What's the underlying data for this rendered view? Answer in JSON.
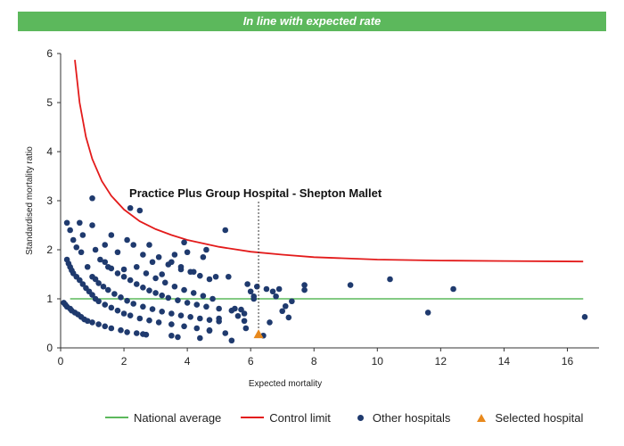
{
  "banner": {
    "text": "In line with expected rate"
  },
  "colors": {
    "banner": "#5cb85c",
    "national_average": "#5cb85c",
    "control_limit": "#e31b1b",
    "other_hospitals": "#1f3a6e",
    "selected_hospital": "#e8891d"
  },
  "legend": {
    "national_average": "National average",
    "control_limit": "Control limit",
    "other_hospitals": "Other hospitals",
    "selected_hospital": "Selected hospital"
  },
  "chart_data": {
    "type": "scatter",
    "xlabel": "Expected mortality",
    "ylabel": "Standardised mortality ratio",
    "xlim": [
      0,
      17
    ],
    "ylim": [
      0,
      6
    ],
    "xticks": [
      0,
      2,
      4,
      6,
      8,
      10,
      12,
      14,
      16
    ],
    "yticks": [
      0,
      1,
      2,
      3,
      4,
      5,
      6
    ],
    "grid": false,
    "legend_position": "bottom",
    "national_average": 1,
    "control_limit": {
      "name": "Control limit",
      "x": [
        0.45,
        0.6,
        0.8,
        1.0,
        1.3,
        1.6,
        2.0,
        2.5,
        3.0,
        3.5,
        4.0,
        5.0,
        6.0,
        7.0,
        8.0,
        10.0,
        12.0,
        14.0,
        16.5
      ],
      "y": [
        5.87,
        5.0,
        4.3,
        3.85,
        3.4,
        3.1,
        2.82,
        2.58,
        2.42,
        2.3,
        2.2,
        2.06,
        1.96,
        1.9,
        1.85,
        1.8,
        1.78,
        1.77,
        1.76
      ]
    },
    "selected_hospital": {
      "name": "Practice Plus Group Hospital - Shepton Mallet",
      "x": 6.25,
      "y": 0.27
    },
    "other_hospitals": [
      [
        0.2,
        2.55
      ],
      [
        0.3,
        2.4
      ],
      [
        0.4,
        2.2
      ],
      [
        0.5,
        2.05
      ],
      [
        0.6,
        2.55
      ],
      [
        0.65,
        1.95
      ],
      [
        0.7,
        2.3
      ],
      [
        0.85,
        1.65
      ],
      [
        1.0,
        3.05
      ],
      [
        1.0,
        2.5
      ],
      [
        1.1,
        2.0
      ],
      [
        1.25,
        1.8
      ],
      [
        1.4,
        2.1
      ],
      [
        1.5,
        1.65
      ],
      [
        1.6,
        2.3
      ],
      [
        1.8,
        1.95
      ],
      [
        2.0,
        1.6
      ],
      [
        2.1,
        2.2
      ],
      [
        2.2,
        2.85
      ],
      [
        2.3,
        2.1
      ],
      [
        2.5,
        2.8
      ],
      [
        2.6,
        1.9
      ],
      [
        2.8,
        2.1
      ],
      [
        2.9,
        1.75
      ],
      [
        3.1,
        1.85
      ],
      [
        3.2,
        1.5
      ],
      [
        3.4,
        1.7
      ],
      [
        3.6,
        1.9
      ],
      [
        3.8,
        1.6
      ],
      [
        3.9,
        2.15
      ],
      [
        4.0,
        1.95
      ],
      [
        4.2,
        1.55
      ],
      [
        4.5,
        1.85
      ],
      [
        4.6,
        2.0
      ],
      [
        4.9,
        1.45
      ],
      [
        5.2,
        2.4
      ],
      [
        5.3,
        1.45
      ],
      [
        0.2,
        1.8
      ],
      [
        0.25,
        1.72
      ],
      [
        0.3,
        1.65
      ],
      [
        0.35,
        1.58
      ],
      [
        0.4,
        1.52
      ],
      [
        0.5,
        1.45
      ],
      [
        0.6,
        1.38
      ],
      [
        0.7,
        1.3
      ],
      [
        0.8,
        1.22
      ],
      [
        0.9,
        1.15
      ],
      [
        1.0,
        1.08
      ],
      [
        1.1,
        1.0
      ],
      [
        1.2,
        0.95
      ],
      [
        1.4,
        0.88
      ],
      [
        1.6,
        0.82
      ],
      [
        1.8,
        0.76
      ],
      [
        2.0,
        0.7
      ],
      [
        2.2,
        0.66
      ],
      [
        2.5,
        0.6
      ],
      [
        2.8,
        0.56
      ],
      [
        3.1,
        0.52
      ],
      [
        3.5,
        0.48
      ],
      [
        3.9,
        0.44
      ],
      [
        4.3,
        0.4
      ],
      [
        4.7,
        0.36
      ],
      [
        1.0,
        1.45
      ],
      [
        1.1,
        1.4
      ],
      [
        1.2,
        1.32
      ],
      [
        1.35,
        1.25
      ],
      [
        1.5,
        1.18
      ],
      [
        1.7,
        1.1
      ],
      [
        1.9,
        1.03
      ],
      [
        2.1,
        0.96
      ],
      [
        2.3,
        0.9
      ],
      [
        2.6,
        0.84
      ],
      [
        2.9,
        0.79
      ],
      [
        3.2,
        0.74
      ],
      [
        3.5,
        0.7
      ],
      [
        3.8,
        0.66
      ],
      [
        4.1,
        0.63
      ],
      [
        4.4,
        0.6
      ],
      [
        4.7,
        0.57
      ],
      [
        5.0,
        0.54
      ],
      [
        1.4,
        1.75
      ],
      [
        1.6,
        1.62
      ],
      [
        1.8,
        1.52
      ],
      [
        2.0,
        1.45
      ],
      [
        2.2,
        1.38
      ],
      [
        2.4,
        1.3
      ],
      [
        2.6,
        1.23
      ],
      [
        2.8,
        1.17
      ],
      [
        3.0,
        1.12
      ],
      [
        3.2,
        1.07
      ],
      [
        3.4,
        1.02
      ],
      [
        3.7,
        0.97
      ],
      [
        4.0,
        0.92
      ],
      [
        4.3,
        0.88
      ],
      [
        4.6,
        0.84
      ],
      [
        5.0,
        0.8
      ],
      [
        5.4,
        0.76
      ],
      [
        5.8,
        0.7
      ],
      [
        2.4,
        1.65
      ],
      [
        2.7,
        1.52
      ],
      [
        3.0,
        1.42
      ],
      [
        3.3,
        1.33
      ],
      [
        3.6,
        1.25
      ],
      [
        3.9,
        1.18
      ],
      [
        4.2,
        1.12
      ],
      [
        4.5,
        1.06
      ],
      [
        4.8,
        1.0
      ],
      [
        3.5,
        1.75
      ],
      [
        3.8,
        1.65
      ],
      [
        4.1,
        1.55
      ],
      [
        4.4,
        1.47
      ],
      [
        4.7,
        1.4
      ],
      [
        0.1,
        0.92
      ],
      [
        0.15,
        0.88
      ],
      [
        0.2,
        0.84
      ],
      [
        0.3,
        0.8
      ],
      [
        0.35,
        0.76
      ],
      [
        0.45,
        0.72
      ],
      [
        0.55,
        0.68
      ],
      [
        0.65,
        0.63
      ],
      [
        0.75,
        0.58
      ],
      [
        0.85,
        0.55
      ],
      [
        1.0,
        0.52
      ],
      [
        1.2,
        0.48
      ],
      [
        1.4,
        0.44
      ],
      [
        1.6,
        0.4
      ],
      [
        1.9,
        0.36
      ],
      [
        2.1,
        0.32
      ],
      [
        2.4,
        0.3
      ],
      [
        2.6,
        0.28
      ],
      [
        2.7,
        0.27
      ],
      [
        3.5,
        0.25
      ],
      [
        3.7,
        0.22
      ],
      [
        4.4,
        0.2
      ],
      [
        4.7,
        0.35
      ],
      [
        5.0,
        0.6
      ],
      [
        5.2,
        0.3
      ],
      [
        5.4,
        0.15
      ],
      [
        5.5,
        0.8
      ],
      [
        5.6,
        0.65
      ],
      [
        5.7,
        0.78
      ],
      [
        5.8,
        0.55
      ],
      [
        5.85,
        0.4
      ],
      [
        5.9,
        1.3
      ],
      [
        6.0,
        1.15
      ],
      [
        6.1,
        1.05
      ],
      [
        6.1,
        1.0
      ],
      [
        6.2,
        1.25
      ],
      [
        6.4,
        0.25
      ],
      [
        6.5,
        1.2
      ],
      [
        6.6,
        0.52
      ],
      [
        6.7,
        1.15
      ],
      [
        6.8,
        1.05
      ],
      [
        6.9,
        1.2
      ],
      [
        7.0,
        0.75
      ],
      [
        7.1,
        0.85
      ],
      [
        7.2,
        0.62
      ],
      [
        7.3,
        0.95
      ],
      [
        7.7,
        1.18
      ],
      [
        7.7,
        1.28
      ],
      [
        9.15,
        1.28
      ],
      [
        10.4,
        1.4
      ],
      [
        11.6,
        0.72
      ],
      [
        12.4,
        1.2
      ],
      [
        16.55,
        0.63
      ]
    ]
  }
}
